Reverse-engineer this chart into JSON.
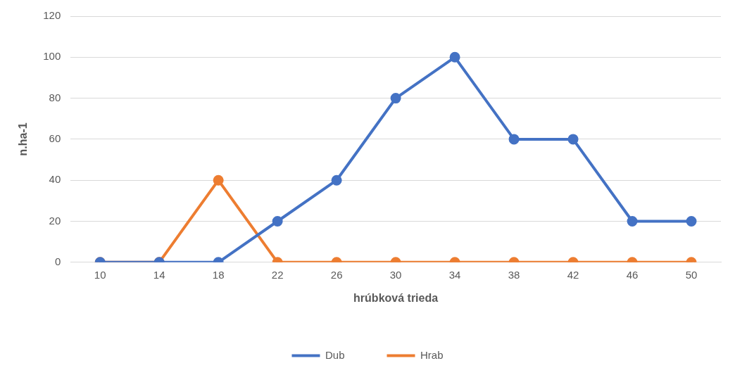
{
  "chart_data": {
    "type": "line",
    "xlabel": "hrúbková trieda",
    "ylabel": "n.ha-1",
    "categories": [
      "10",
      "14",
      "18",
      "22",
      "26",
      "30",
      "34",
      "38",
      "42",
      "46",
      "50"
    ],
    "series": [
      {
        "name": "Dub",
        "color": "#4472c4",
        "values": [
          0,
          0,
          0,
          20,
          40,
          80,
          100,
          60,
          60,
          20,
          20
        ]
      },
      {
        "name": "Hrab",
        "color": "#ed7d31",
        "values": [
          0,
          0,
          40,
          0,
          0,
          0,
          0,
          0,
          0,
          0,
          0
        ]
      }
    ],
    "ylim": [
      0,
      120
    ],
    "yticks": [
      0,
      20,
      40,
      60,
      80,
      100,
      120
    ],
    "grid": "y",
    "legend": "bottom",
    "marker": "circle",
    "line_style": "solid"
  }
}
